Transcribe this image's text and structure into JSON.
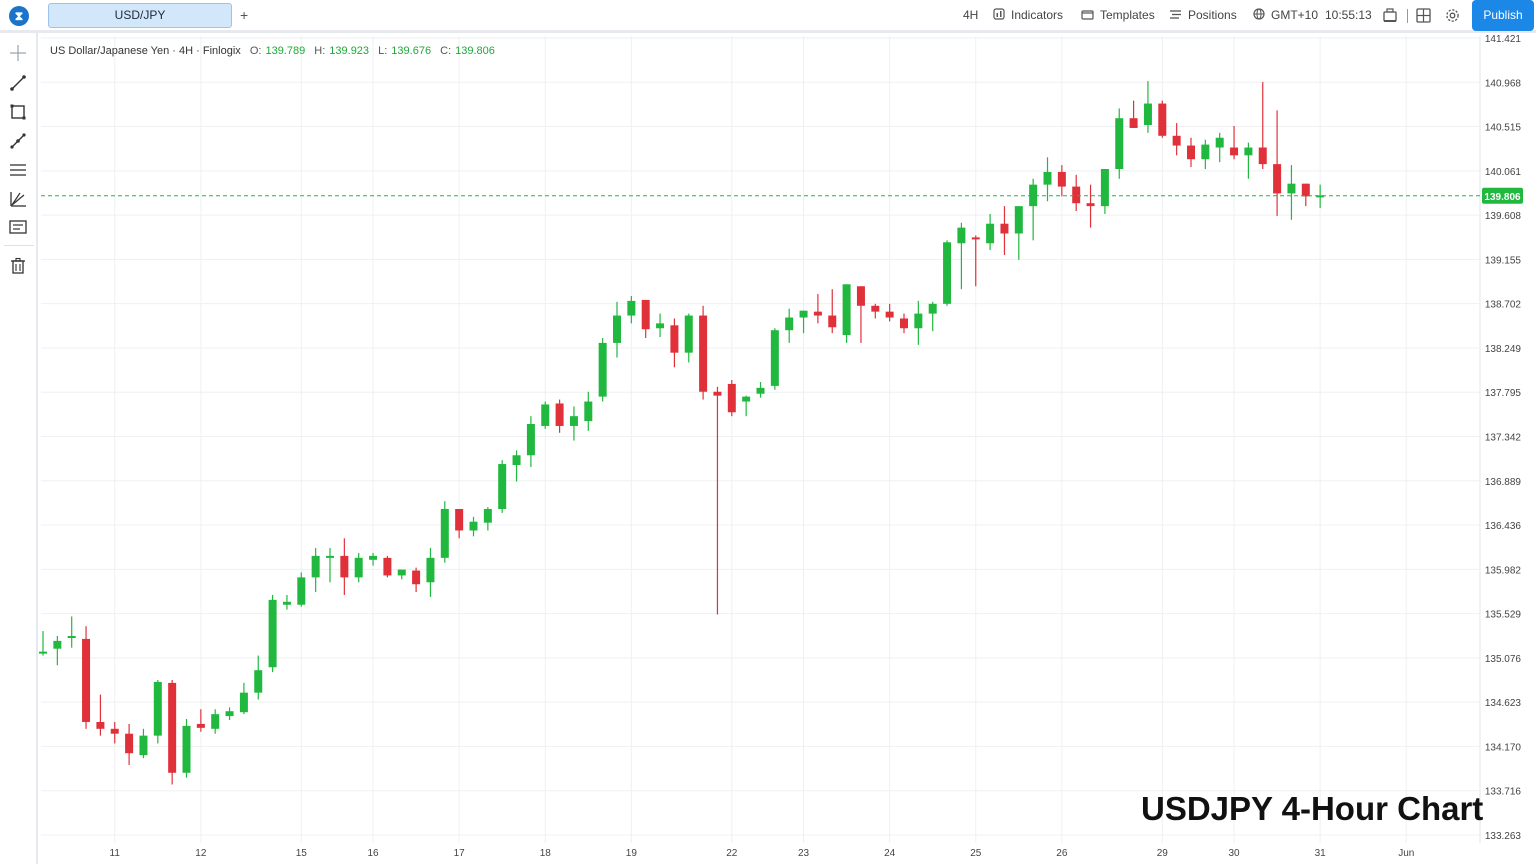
{
  "app": {
    "symbol_tab": "USD/JPY",
    "add_tab": "+",
    "timeframe": "4H",
    "indicators": "Indicators",
    "templates": "Templates",
    "positions": "Positions",
    "timezone": "GMT+10",
    "clock": "10:55:13",
    "publish": "Publish"
  },
  "legend": {
    "title": "US Dollar/Japanese Yen · 4H · Finlogix",
    "o_label": "O:",
    "o": "139.789",
    "h_label": "H:",
    "h": "139.923",
    "l_label": "L:",
    "l": "139.676",
    "c_label": "C:",
    "c": "139.806"
  },
  "watermark": "USDJPY 4-Hour Chart",
  "colors": {
    "up": "#21b83f",
    "down": "#e0313a",
    "grid": "#eef0f3",
    "price_line": "#21b83f",
    "accent": "#1b87e6"
  },
  "icons": [
    "crosshair-icon",
    "trendline-icon",
    "rectangle-icon",
    "fib-icon",
    "parallel-icon",
    "pitchfork-icon",
    "text-icon",
    "trash-icon"
  ],
  "chart_data": {
    "type": "candlestick",
    "title": "",
    "ylim": [
      133.08,
      141.52
    ],
    "y_ticks": [
      "141.421",
      "140.968",
      "140.515",
      "140.061",
      "139.608",
      "139.155",
      "138.702",
      "138.249",
      "137.795",
      "137.342",
      "136.889",
      "136.436",
      "135.982",
      "135.529",
      "135.076",
      "134.623",
      "134.170",
      "133.716",
      "133.263"
    ],
    "x_ticks": [
      "11",
      "12",
      "15",
      "16",
      "17",
      "18",
      "19",
      "22",
      "23",
      "24",
      "25",
      "26",
      "29",
      "30",
      "31",
      "Jun"
    ],
    "last_price": "139.806",
    "candles": [
      {
        "o": 135.12,
        "h": 135.35,
        "l": 135.1,
        "c": 135.14
      },
      {
        "o": 135.17,
        "h": 135.3,
        "l": 135.0,
        "c": 135.25
      },
      {
        "o": 135.28,
        "h": 135.5,
        "l": 135.18,
        "c": 135.3
      },
      {
        "o": 135.27,
        "h": 135.4,
        "l": 134.35,
        "c": 134.42
      },
      {
        "o": 134.42,
        "h": 134.7,
        "l": 134.28,
        "c": 134.35
      },
      {
        "o": 134.35,
        "h": 134.42,
        "l": 134.2,
        "c": 134.3
      },
      {
        "o": 134.3,
        "h": 134.4,
        "l": 133.98,
        "c": 134.1
      },
      {
        "o": 134.08,
        "h": 134.35,
        "l": 134.05,
        "c": 134.28
      },
      {
        "o": 134.28,
        "h": 134.85,
        "l": 134.2,
        "c": 134.83
      },
      {
        "o": 134.82,
        "h": 134.85,
        "l": 133.78,
        "c": 133.9
      },
      {
        "o": 133.9,
        "h": 134.45,
        "l": 133.85,
        "c": 134.38
      },
      {
        "o": 134.4,
        "h": 134.55,
        "l": 134.32,
        "c": 134.36
      },
      {
        "o": 134.35,
        "h": 134.55,
        "l": 134.3,
        "c": 134.5
      },
      {
        "o": 134.48,
        "h": 134.57,
        "l": 134.44,
        "c": 134.53
      },
      {
        "o": 134.52,
        "h": 134.82,
        "l": 134.5,
        "c": 134.72
      },
      {
        "o": 134.72,
        "h": 135.1,
        "l": 134.65,
        "c": 134.95
      },
      {
        "o": 134.98,
        "h": 135.72,
        "l": 134.93,
        "c": 135.67
      },
      {
        "o": 135.62,
        "h": 135.72,
        "l": 135.57,
        "c": 135.65
      },
      {
        "o": 135.62,
        "h": 135.95,
        "l": 135.6,
        "c": 135.9
      },
      {
        "o": 135.9,
        "h": 136.2,
        "l": 135.75,
        "c": 136.12
      },
      {
        "o": 136.1,
        "h": 136.2,
        "l": 135.85,
        "c": 136.12
      },
      {
        "o": 136.12,
        "h": 136.3,
        "l": 135.72,
        "c": 135.9
      },
      {
        "o": 135.9,
        "h": 136.15,
        "l": 135.85,
        "c": 136.1
      },
      {
        "o": 136.08,
        "h": 136.15,
        "l": 136.02,
        "c": 136.12
      },
      {
        "o": 136.1,
        "h": 136.12,
        "l": 135.9,
        "c": 135.92
      },
      {
        "o": 135.92,
        "h": 135.97,
        "l": 135.88,
        "c": 135.98
      },
      {
        "o": 135.97,
        "h": 136.0,
        "l": 135.75,
        "c": 135.83
      },
      {
        "o": 135.85,
        "h": 136.2,
        "l": 135.7,
        "c": 136.1
      },
      {
        "o": 136.1,
        "h": 136.68,
        "l": 136.05,
        "c": 136.6
      },
      {
        "o": 136.6,
        "h": 136.6,
        "l": 136.3,
        "c": 136.38
      },
      {
        "o": 136.38,
        "h": 136.52,
        "l": 136.32,
        "c": 136.47
      },
      {
        "o": 136.46,
        "h": 136.62,
        "l": 136.38,
        "c": 136.6
      },
      {
        "o": 136.6,
        "h": 137.1,
        "l": 136.56,
        "c": 137.06
      },
      {
        "o": 137.05,
        "h": 137.2,
        "l": 136.88,
        "c": 137.15
      },
      {
        "o": 137.15,
        "h": 137.55,
        "l": 137.03,
        "c": 137.47
      },
      {
        "o": 137.45,
        "h": 137.7,
        "l": 137.42,
        "c": 137.67
      },
      {
        "o": 137.68,
        "h": 137.72,
        "l": 137.38,
        "c": 137.45
      },
      {
        "o": 137.45,
        "h": 137.65,
        "l": 137.3,
        "c": 137.55
      },
      {
        "o": 137.5,
        "h": 137.8,
        "l": 137.4,
        "c": 137.7
      },
      {
        "o": 137.75,
        "h": 138.35,
        "l": 137.7,
        "c": 138.3
      },
      {
        "o": 138.3,
        "h": 138.72,
        "l": 138.15,
        "c": 138.58
      },
      {
        "o": 138.58,
        "h": 138.78,
        "l": 138.5,
        "c": 138.73
      },
      {
        "o": 138.74,
        "h": 138.74,
        "l": 138.35,
        "c": 138.44
      },
      {
        "o": 138.45,
        "h": 138.6,
        "l": 138.36,
        "c": 138.5
      },
      {
        "o": 138.48,
        "h": 138.55,
        "l": 138.05,
        "c": 138.2
      },
      {
        "o": 138.2,
        "h": 138.6,
        "l": 138.1,
        "c": 138.58
      },
      {
        "o": 138.58,
        "h": 138.68,
        "l": 137.72,
        "c": 137.8
      },
      {
        "o": 137.8,
        "h": 137.85,
        "l": 135.52,
        "c": 137.76
      },
      {
        "o": 137.88,
        "h": 137.92,
        "l": 137.55,
        "c": 137.59
      },
      {
        "o": 137.7,
        "h": 137.76,
        "l": 137.55,
        "c": 137.75
      },
      {
        "o": 137.78,
        "h": 137.9,
        "l": 137.74,
        "c": 137.84
      },
      {
        "o": 137.86,
        "h": 138.45,
        "l": 137.82,
        "c": 138.43
      },
      {
        "o": 138.43,
        "h": 138.65,
        "l": 138.3,
        "c": 138.56
      },
      {
        "o": 138.56,
        "h": 138.63,
        "l": 138.4,
        "c": 138.63
      },
      {
        "o": 138.62,
        "h": 138.8,
        "l": 138.5,
        "c": 138.58
      },
      {
        "o": 138.58,
        "h": 138.85,
        "l": 138.4,
        "c": 138.46
      },
      {
        "o": 138.38,
        "h": 138.9,
        "l": 138.3,
        "c": 138.9
      },
      {
        "o": 138.88,
        "h": 138.88,
        "l": 138.3,
        "c": 138.68
      },
      {
        "o": 138.68,
        "h": 138.7,
        "l": 138.55,
        "c": 138.62
      },
      {
        "o": 138.62,
        "h": 138.7,
        "l": 138.52,
        "c": 138.56
      },
      {
        "o": 138.55,
        "h": 138.6,
        "l": 138.4,
        "c": 138.45
      },
      {
        "o": 138.45,
        "h": 138.73,
        "l": 138.28,
        "c": 138.6
      },
      {
        "o": 138.6,
        "h": 138.72,
        "l": 138.42,
        "c": 138.7
      },
      {
        "o": 138.7,
        "h": 139.35,
        "l": 138.68,
        "c": 139.33
      },
      {
        "o": 139.32,
        "h": 139.53,
        "l": 138.85,
        "c": 139.48
      },
      {
        "o": 139.38,
        "h": 139.4,
        "l": 138.88,
        "c": 139.36
      },
      {
        "o": 139.32,
        "h": 139.62,
        "l": 139.25,
        "c": 139.52
      },
      {
        "o": 139.52,
        "h": 139.7,
        "l": 139.2,
        "c": 139.42
      },
      {
        "o": 139.42,
        "h": 139.62,
        "l": 139.15,
        "c": 139.7
      },
      {
        "o": 139.7,
        "h": 139.98,
        "l": 139.35,
        "c": 139.92
      },
      {
        "o": 139.92,
        "h": 140.2,
        "l": 139.75,
        "c": 140.05
      },
      {
        "o": 140.05,
        "h": 140.12,
        "l": 139.8,
        "c": 139.9
      },
      {
        "o": 139.9,
        "h": 140.02,
        "l": 139.65,
        "c": 139.73
      },
      {
        "o": 139.73,
        "h": 139.92,
        "l": 139.48,
        "c": 139.7
      },
      {
        "o": 139.7,
        "h": 140.08,
        "l": 139.62,
        "c": 140.08
      },
      {
        "o": 140.08,
        "h": 140.7,
        "l": 139.98,
        "c": 140.6
      },
      {
        "o": 140.6,
        "h": 140.78,
        "l": 140.5,
        "c": 140.5
      },
      {
        "o": 140.53,
        "h": 140.98,
        "l": 140.45,
        "c": 140.75
      },
      {
        "o": 140.75,
        "h": 140.78,
        "l": 140.4,
        "c": 140.42
      },
      {
        "o": 140.42,
        "h": 140.55,
        "l": 140.22,
        "c": 140.32
      },
      {
        "o": 140.32,
        "h": 140.4,
        "l": 140.1,
        "c": 140.18
      },
      {
        "o": 140.18,
        "h": 140.38,
        "l": 140.08,
        "c": 140.33
      },
      {
        "o": 140.3,
        "h": 140.45,
        "l": 140.15,
        "c": 140.4
      },
      {
        "o": 140.3,
        "h": 140.52,
        "l": 140.18,
        "c": 140.22
      },
      {
        "o": 140.22,
        "h": 140.35,
        "l": 139.98,
        "c": 140.3
      },
      {
        "o": 140.3,
        "h": 140.97,
        "l": 140.08,
        "c": 140.13
      },
      {
        "o": 140.13,
        "h": 140.68,
        "l": 139.6,
        "c": 139.83
      },
      {
        "o": 139.83,
        "h": 140.12,
        "l": 139.56,
        "c": 139.93
      },
      {
        "o": 139.93,
        "h": 139.93,
        "l": 139.7,
        "c": 139.8
      },
      {
        "o": 139.79,
        "h": 139.92,
        "l": 139.68,
        "c": 139.81
      }
    ]
  }
}
